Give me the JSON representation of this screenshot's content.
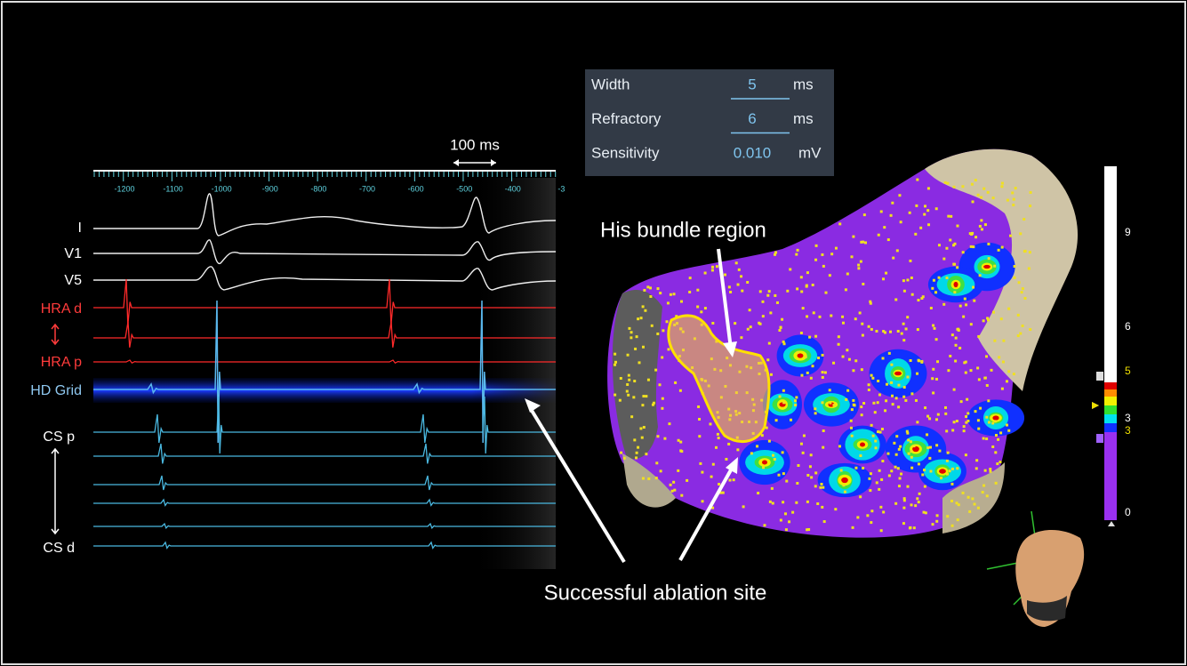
{
  "ecg_panel": {
    "scale_label": "100 ms",
    "timeline_ticks": [
      "-1200",
      "-1100",
      "-1000",
      "-900",
      "-800",
      "-700",
      "-600",
      "-500",
      "-400",
      "-3"
    ],
    "channels": [
      "I",
      "V1",
      "V5",
      "HRA d",
      "HRA p",
      "HD Grid",
      "CS p",
      "CS d"
    ]
  },
  "settings_panel": {
    "rows": [
      [
        "Width",
        "5",
        "ms"
      ],
      [
        "Refractory",
        "6",
        "ms"
      ],
      [
        "Sensitivity",
        "0.010",
        "mV"
      ]
    ]
  },
  "annotations": {
    "his_bundle": "His bundle region",
    "ablation_site": "Successful ablation site"
  },
  "color_scale": {
    "labels": [
      "9",
      "6",
      "5",
      "3",
      "3",
      "0"
    ]
  }
}
